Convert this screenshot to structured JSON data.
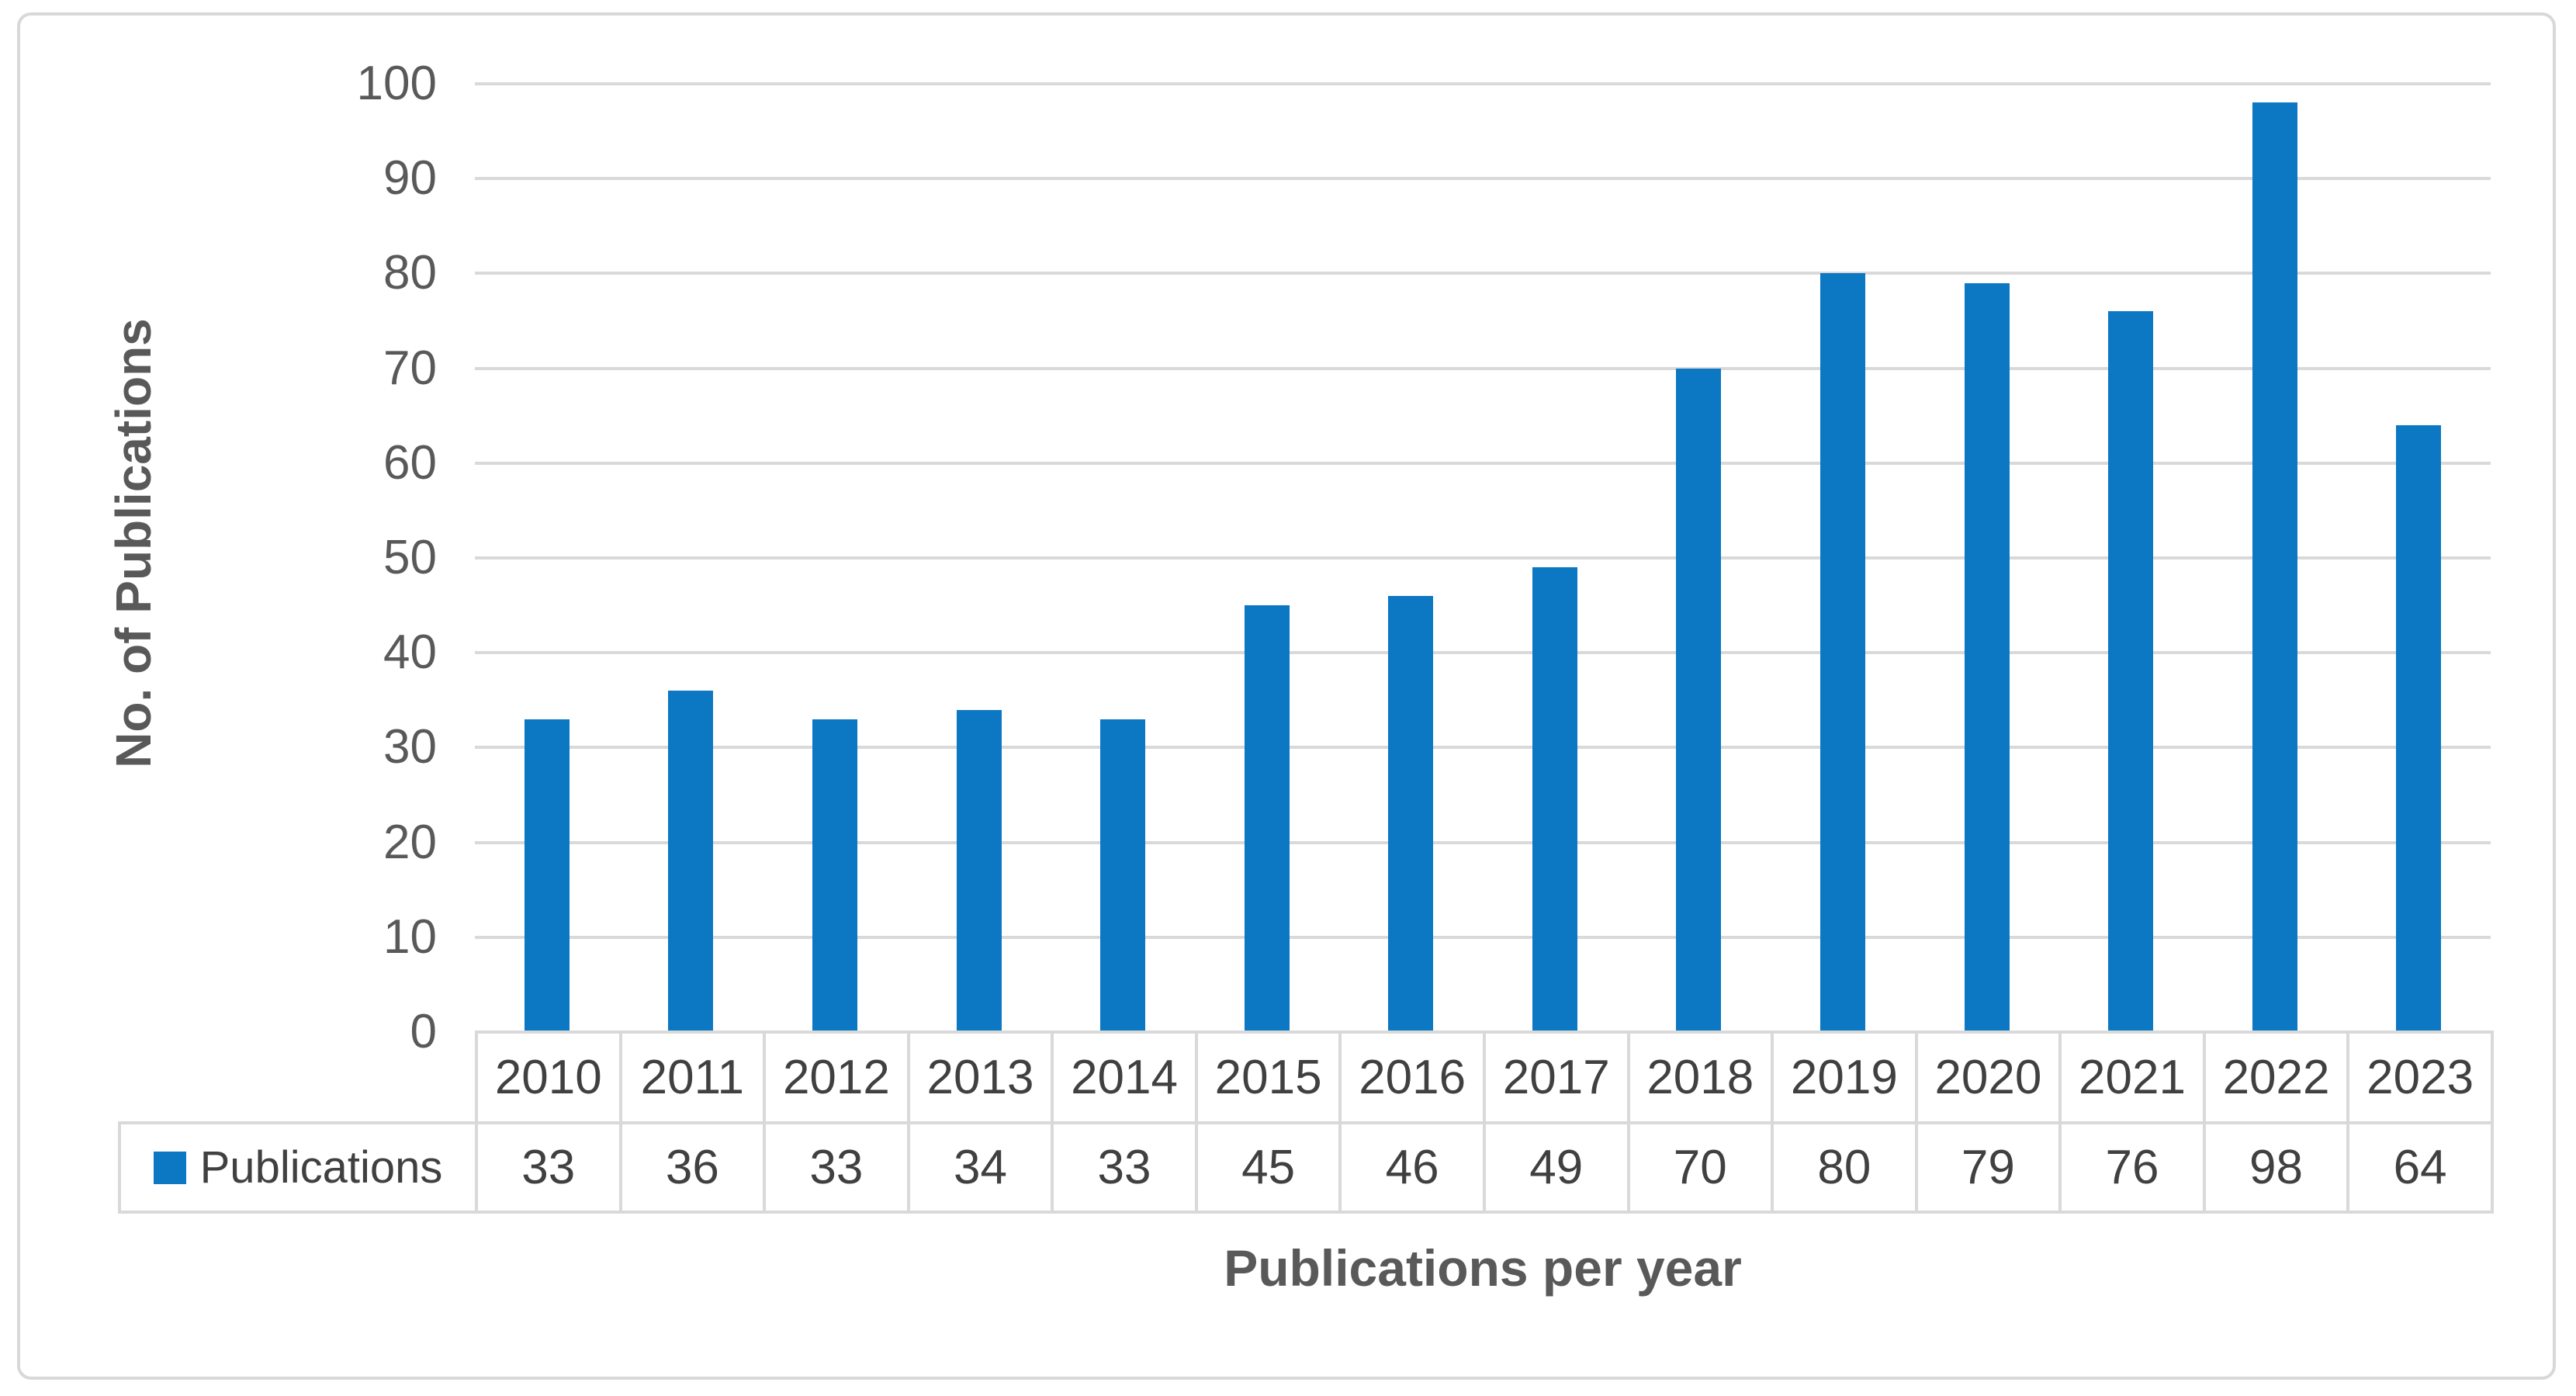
{
  "figure": {
    "background_color": "#ffffff",
    "border_color": "#d8d8d8"
  },
  "chart_data": {
    "type": "bar",
    "title": "",
    "xlabel": "Publications per year",
    "ylabel": "No. of Publications",
    "categories": [
      "2010",
      "2011",
      "2012",
      "2013",
      "2014",
      "2015",
      "2016",
      "2017",
      "2018",
      "2019",
      "2020",
      "2021",
      "2022",
      "2023"
    ],
    "series": [
      {
        "name": "Publications",
        "values": [
          33,
          36,
          33,
          34,
          33,
          45,
          46,
          49,
          70,
          80,
          79,
          76,
          98,
          64
        ]
      }
    ],
    "ylim": [
      0,
      100
    ],
    "y_ticks": [
      0,
      10,
      20,
      30,
      40,
      50,
      60,
      70,
      80,
      90,
      100
    ],
    "grid": "horizontal",
    "gridline_color": "#d9d9d9",
    "bar_color": "#0c77c3",
    "legend_position": "data-table-left",
    "data_table_shown": true
  }
}
